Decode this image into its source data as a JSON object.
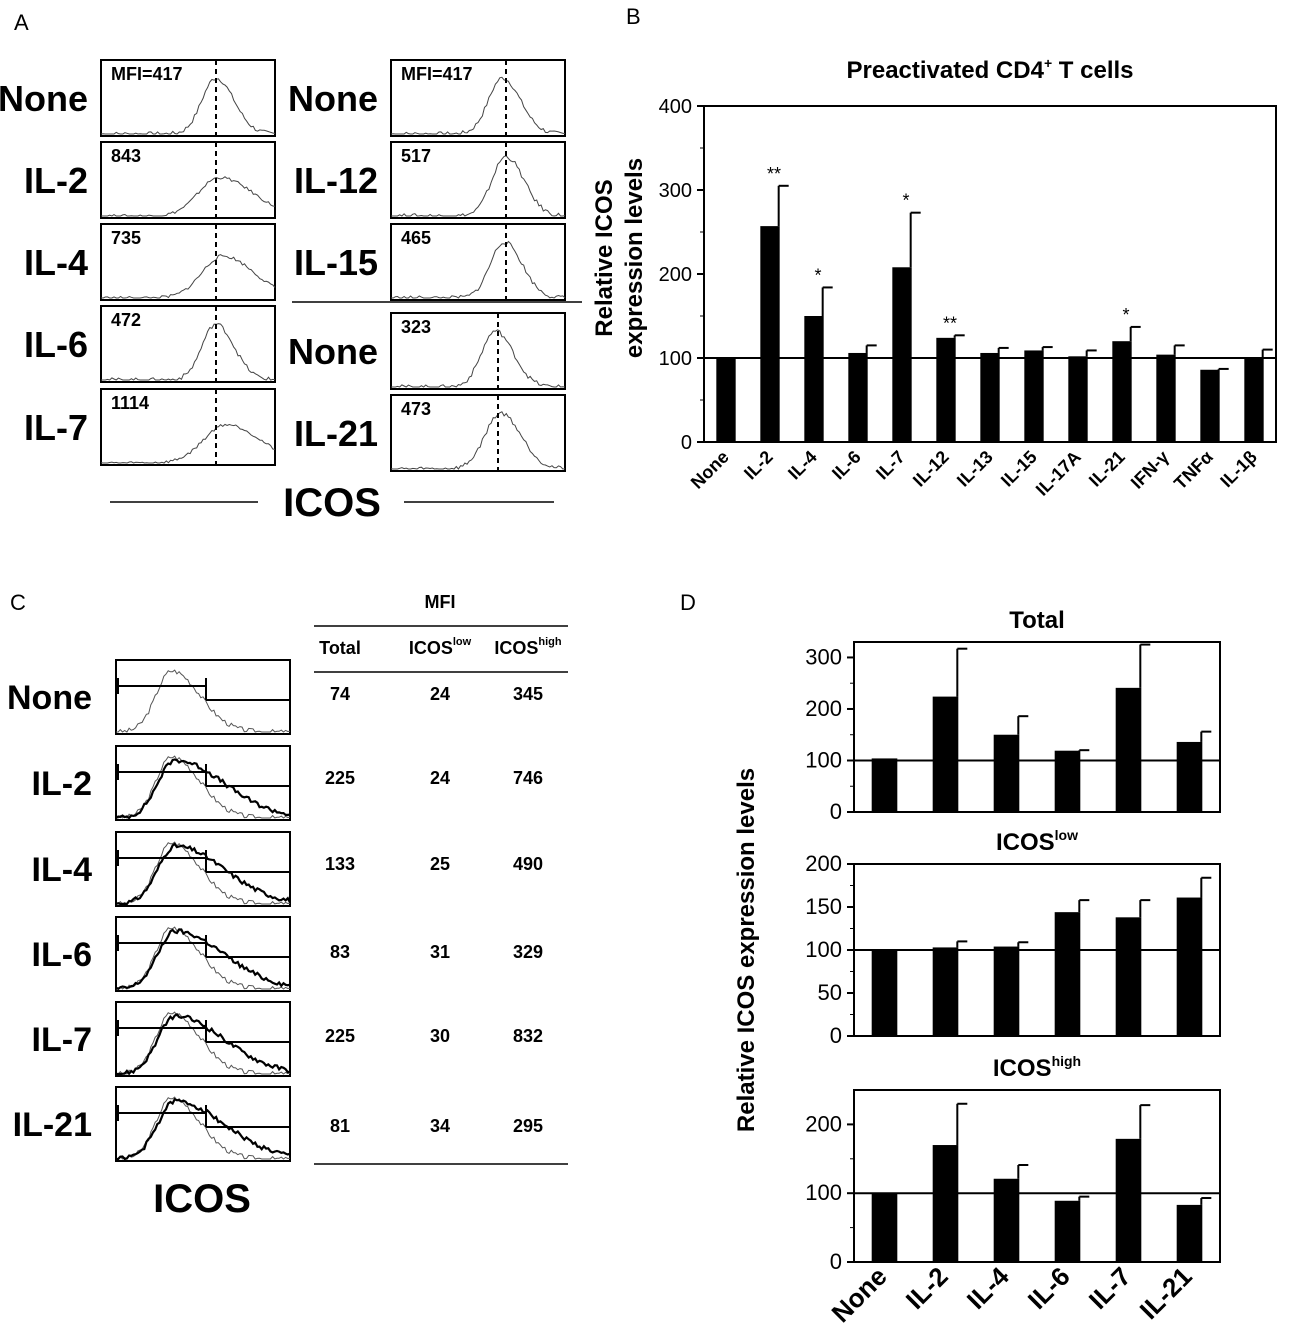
{
  "panels": {
    "a": "A",
    "b": "B",
    "c": "C",
    "d": "D"
  },
  "panel_a": {
    "axis_label": "ICOS",
    "left_column": [
      {
        "label": "None",
        "value": "MFI=417"
      },
      {
        "label": "IL-2",
        "value": "843"
      },
      {
        "label": "IL-4",
        "value": "735"
      },
      {
        "label": "IL-6",
        "value": "472"
      },
      {
        "label": "IL-7",
        "value": "1114"
      }
    ],
    "right_column": [
      {
        "label": "None",
        "value": "MFI=417"
      },
      {
        "label": "IL-12",
        "value": "517"
      },
      {
        "label": "IL-15",
        "value": "465"
      },
      {
        "label": "None",
        "value": "323"
      },
      {
        "label": "IL-21",
        "value": "473"
      }
    ]
  },
  "panel_c": {
    "axis_label": "ICOS",
    "table_header": "MFI",
    "columns": [
      "Total",
      "ICOS",
      "ICOS"
    ],
    "column_superscripts": [
      "",
      "low",
      "high"
    ],
    "rows": [
      {
        "label": "None",
        "values": [
          "74",
          "24",
          "345"
        ]
      },
      {
        "label": "IL-2",
        "values": [
          "225",
          "24",
          "746"
        ]
      },
      {
        "label": "IL-4",
        "values": [
          "133",
          "25",
          "490"
        ]
      },
      {
        "label": "IL-6",
        "values": [
          "83",
          "31",
          "329"
        ]
      },
      {
        "label": "IL-7",
        "values": [
          "225",
          "30",
          "832"
        ]
      },
      {
        "label": "IL-21",
        "values": [
          "81",
          "34",
          "295"
        ]
      }
    ]
  },
  "chart_data": [
    {
      "panel": "B",
      "type": "bar",
      "title": "Preactivated CD4",
      "title_superscript": "+",
      "title_suffix": " T cells",
      "ylabel_line1": "Relative ICOS",
      "ylabel_line2": "expression levels",
      "ylim": [
        0,
        400
      ],
      "yticks": [
        "0",
        "100",
        "200",
        "300",
        "400"
      ],
      "reference_line": 100,
      "categories": [
        "None",
        "IL-2",
        "IL-4",
        "IL-6",
        "IL-7",
        "IL-12",
        "IL-13",
        "IL-15",
        "IL-17A",
        "IL-21",
        "IFN-γ",
        "TNFα",
        "IL-1β"
      ],
      "values": [
        100,
        257,
        150,
        106,
        208,
        124,
        106,
        109,
        102,
        120,
        104,
        86,
        100
      ],
      "errors": [
        0,
        48,
        34,
        9,
        65,
        3,
        6,
        4,
        7,
        17,
        11,
        1,
        10
      ],
      "significance": [
        "",
        "**",
        "*",
        "",
        "*",
        "**",
        "",
        "",
        "",
        "*",
        "",
        "",
        ""
      ]
    },
    {
      "panel": "D",
      "type": "bar",
      "ylabel": "Relative ICOS expression levels",
      "categories": [
        "None",
        "IL-2",
        "IL-4",
        "IL-6",
        "IL-7",
        "IL-21"
      ],
      "subplots": [
        {
          "title": "Total",
          "title_superscript": "",
          "ylim": [
            0,
            330
          ],
          "yticks": [
            "0",
            "100",
            "200",
            "300"
          ],
          "reference_line": 100,
          "values": [
            104,
            224,
            150,
            119,
            241,
            136
          ],
          "errors": [
            0,
            93,
            36,
            1,
            84,
            20
          ]
        },
        {
          "title": "ICOS",
          "title_superscript": "low",
          "ylim": [
            0,
            200
          ],
          "yticks": [
            "0",
            "50",
            "100",
            "150",
            "200"
          ],
          "reference_line": 100,
          "values": [
            100,
            103,
            104,
            144,
            138,
            161
          ],
          "errors": [
            0,
            7,
            5,
            14,
            20,
            23
          ]
        },
        {
          "title": "ICOS",
          "title_superscript": "high",
          "ylim": [
            0,
            250
          ],
          "yticks": [
            "0",
            "100",
            "200"
          ],
          "reference_line": 100,
          "values": [
            100,
            170,
            121,
            89,
            179,
            83
          ],
          "errors": [
            0,
            60,
            20,
            6,
            49,
            10
          ]
        }
      ]
    }
  ]
}
